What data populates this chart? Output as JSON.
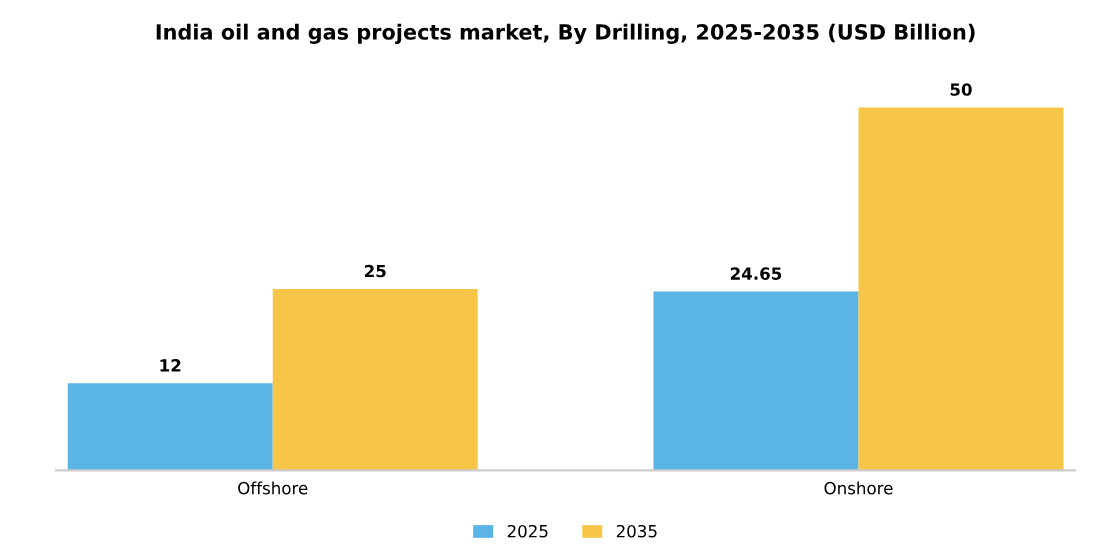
{
  "chart_data": {
    "type": "bar",
    "title": "India oil and gas projects market, By Drilling, 2025-2035 (USD Billion)",
    "categories": [
      "Offshore",
      "Onshore"
    ],
    "series": [
      {
        "name": "2025",
        "color": "#5ab4e5",
        "values": [
          12,
          24.65
        ]
      },
      {
        "name": "2035",
        "color": "#f7c548",
        "values": [
          25,
          50
        ]
      }
    ],
    "data_labels": true,
    "legend": "bottom",
    "grid": false
  }
}
